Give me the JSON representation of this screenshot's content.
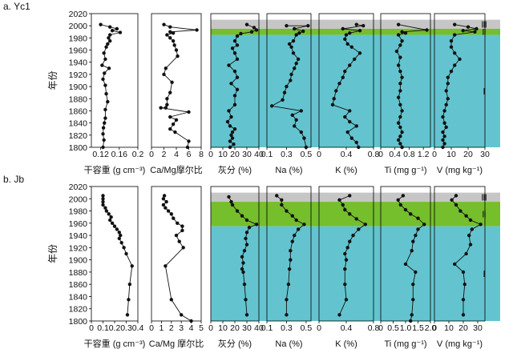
{
  "chart_data": [
    {
      "type": "line",
      "panel_label": "a. Yc1",
      "ylabel": "年份",
      "ylim": [
        1800,
        2020
      ],
      "y_ticks": [
        1800,
        1820,
        1840,
        1860,
        1880,
        1900,
        1920,
        1940,
        1960,
        1980,
        2000,
        2020
      ],
      "zones": [
        {
          "name": "Ⅲ",
          "from": 1995,
          "to": 2010,
          "color": "#c6c6c6"
        },
        {
          "name": "Ⅱ",
          "from": 1985,
          "to": 1995,
          "color": "#75be2c"
        },
        {
          "name": "Ⅰ",
          "from": 1800,
          "to": 1985,
          "color": "#63c4cf"
        }
      ],
      "series": [
        {
          "xlabel": "干容重 (g cm⁻³)",
          "xlim": [
            0.1,
            0.2
          ],
          "x_ticks": [
            "0.12",
            "0.16",
            "0.2"
          ],
          "x_tick_values": [
            0.12,
            0.16,
            0.2
          ],
          "x": [
            0.12,
            0.14,
            0.155,
            0.145,
            0.162,
            0.14,
            0.137,
            0.14,
            0.135,
            0.132,
            0.127,
            0.13,
            0.123,
            0.138,
            0.128,
            0.125,
            0.13,
            0.132,
            0.135,
            0.13,
            0.13,
            0.128,
            0.126,
            0.125,
            0.127,
            0.125
          ],
          "y": [
            2002,
            1998,
            1995,
            1992,
            1989,
            1985,
            1980,
            1975,
            1970,
            1965,
            1955,
            1945,
            1935,
            1930,
            1922,
            1912,
            1902,
            1888,
            1875,
            1862,
            1848,
            1840,
            1832,
            1822,
            1812,
            1800
          ]
        },
        {
          "xlabel": "Ca/Mg摩尔比",
          "xlim": [
            0,
            8
          ],
          "x_ticks": [
            "0",
            "2",
            "4",
            "6",
            "8"
          ],
          "x_tick_values": [
            0,
            2,
            4,
            6,
            8
          ],
          "x": [
            2.0,
            3.0,
            7.3,
            3.0,
            3.5,
            2.5,
            3.0,
            3.5,
            3.7,
            4.0,
            4.2,
            2.3,
            2.0,
            3.3,
            3.0,
            2.5,
            2.5,
            2.3,
            1.5,
            6.0,
            3.0,
            4.0,
            3.5,
            3.0,
            3.8,
            6.0,
            5.8
          ],
          "y": [
            2002,
            1998,
            1993,
            1990,
            1988,
            1985,
            1980,
            1975,
            1968,
            1960,
            1950,
            1930,
            1920,
            1907,
            1890,
            1880,
            1870,
            1865,
            1865,
            1858,
            1850,
            1845,
            1838,
            1830,
            1825,
            1810,
            1800
          ]
        },
        {
          "xlabel": "灰分 (%)",
          "xlim": [
            0,
            40
          ],
          "x_ticks": [
            "0",
            "10",
            "20",
            "30",
            "40"
          ],
          "x_tick_values": [
            0,
            10,
            20,
            30,
            40
          ],
          "x": [
            30,
            36,
            38,
            34,
            25,
            22,
            20,
            22,
            18,
            20,
            22,
            15,
            20,
            22,
            17,
            22,
            20,
            20,
            15,
            17,
            14,
            16,
            20,
            18,
            17,
            18,
            16,
            19,
            16
          ],
          "y": [
            2002,
            1997,
            1993,
            1990,
            1987,
            1983,
            1975,
            1968,
            1963,
            1955,
            1945,
            1935,
            1925,
            1915,
            1905,
            1895,
            1885,
            1870,
            1860,
            1850,
            1842,
            1835,
            1830,
            1825,
            1820,
            1815,
            1810,
            1805,
            1800
          ]
        },
        {
          "xlabel": "Na (%)",
          "xlim": [
            0.1,
            0.55
          ],
          "x_ticks": [
            "0.1",
            "0.3",
            "0.5"
          ],
          "x_tick_values": [
            0.1,
            0.3,
            0.5
          ],
          "x": [
            0.3,
            0.52,
            0.38,
            0.47,
            0.43,
            0.4,
            0.37,
            0.33,
            0.35,
            0.37,
            0.42,
            0.4,
            0.38,
            0.35,
            0.34,
            0.3,
            0.28,
            0.26,
            0.15,
            0.45,
            0.36,
            0.4,
            0.38,
            0.45,
            0.48,
            0.5
          ],
          "y": [
            2000,
            2000,
            1995,
            1991,
            1988,
            1985,
            1975,
            1970,
            1965,
            1955,
            1945,
            1938,
            1930,
            1920,
            1910,
            1900,
            1890,
            1878,
            1868,
            1860,
            1853,
            1845,
            1835,
            1825,
            1815,
            1800
          ]
        },
        {
          "xlabel": "K (%)",
          "xlim": [
            0,
            0.8
          ],
          "x_ticks": [
            "0",
            "0.4",
            "0.8"
          ],
          "x_tick_values": [
            0,
            0.4,
            0.8
          ],
          "x": [
            0.55,
            0.65,
            0.35,
            0.6,
            0.45,
            0.4,
            0.38,
            0.42,
            0.48,
            0.6,
            0.52,
            0.45,
            0.38,
            0.35,
            0.3,
            0.25,
            0.22,
            0.2,
            0.45,
            0.38,
            0.45,
            0.55,
            0.42,
            0.48,
            0.55,
            0.58
          ],
          "y": [
            2002,
            2000,
            1995,
            1992,
            1988,
            1985,
            1978,
            1970,
            1965,
            1955,
            1945,
            1935,
            1925,
            1915,
            1905,
            1893,
            1880,
            1870,
            1860,
            1850,
            1842,
            1835,
            1825,
            1815,
            1808,
            1800
          ]
        },
        {
          "xlabel": "Ti (mg g⁻¹)",
          "xlim": [
            0,
            1.4
          ],
          "x_ticks": [
            "0",
            "0.4",
            "0.8",
            "1.2"
          ],
          "x_tick_values": [
            0,
            0.4,
            0.8,
            1.2
          ],
          "x": [
            0.5,
            1.3,
            0.6,
            0.7,
            0.5,
            0.6,
            0.55,
            0.45,
            0.55,
            0.5,
            0.55,
            0.6,
            0.55,
            0.55,
            0.5,
            0.55,
            0.6,
            0.55,
            0.5,
            0.55,
            0.6,
            0.55,
            0.5,
            0.55,
            0.6,
            0.6
          ],
          "y": [
            2002,
            1993,
            1990,
            1988,
            1985,
            1975,
            1968,
            1958,
            1948,
            1935,
            1925,
            1915,
            1905,
            1893,
            1882,
            1870,
            1860,
            1850,
            1840,
            1833,
            1825,
            1818,
            1812,
            1806,
            1800,
            1800
          ]
        },
        {
          "xlabel": "V (mg kg⁻¹)",
          "xlim": [
            0,
            30
          ],
          "x_ticks": [
            "0",
            "10",
            "20",
            "30"
          ],
          "x_tick_values": [
            0,
            10,
            20,
            30
          ],
          "x": [
            12,
            20,
            25,
            17,
            24,
            12,
            10,
            10,
            12,
            15,
            12,
            10,
            8,
            8,
            7,
            8,
            7,
            6,
            5,
            6,
            7,
            5,
            6,
            5,
            6,
            5
          ],
          "y": [
            2002,
            1998,
            1995,
            1992,
            1990,
            1985,
            1975,
            1965,
            1955,
            1945,
            1935,
            1925,
            1915,
            1905,
            1893,
            1880,
            1870,
            1860,
            1850,
            1840,
            1833,
            1825,
            1818,
            1812,
            1806,
            1800
          ]
        }
      ]
    },
    {
      "type": "line",
      "panel_label": "b. Jb",
      "ylabel": "年份",
      "ylim": [
        1800,
        2020
      ],
      "y_ticks": [
        1800,
        1820,
        1840,
        1860,
        1880,
        1900,
        1920,
        1940,
        1960,
        1980,
        2000,
        2020
      ],
      "zones": [
        {
          "name": "Ⅲ",
          "from": 1995,
          "to": 2010,
          "color": "#c6c6c6"
        },
        {
          "name": "Ⅱ",
          "from": 1955,
          "to": 1995,
          "color": "#75be2c"
        },
        {
          "name": "Ⅰ",
          "from": 1800,
          "to": 1955,
          "color": "#63c4cf"
        }
      ],
      "series": [
        {
          "xlabel": "干容重 (g cm⁻³)",
          "xlim": [
            0,
            0.4
          ],
          "x_ticks": [
            "0",
            "0.1",
            "0.2",
            "0.3",
            "0.4"
          ],
          "x_tick_values": [
            0,
            0.1,
            0.2,
            0.3,
            0.4
          ],
          "x": [
            0.1,
            0.1,
            0.1,
            0.1,
            0.12,
            0.13,
            0.15,
            0.17,
            0.16,
            0.18,
            0.2,
            0.22,
            0.24,
            0.25,
            0.24,
            0.26,
            0.28,
            0.3,
            0.35,
            0.33,
            0.32,
            0.31
          ],
          "y": [
            2005,
            2000,
            1995,
            1990,
            1985,
            1980,
            1975,
            1970,
            1965,
            1960,
            1955,
            1950,
            1945,
            1940,
            1935,
            1928,
            1920,
            1910,
            1890,
            1860,
            1835,
            1810
          ]
        },
        {
          "xlabel": "Ca/Mg 摩尔比",
          "xlim": [
            0,
            5
          ],
          "x_ticks": [
            "0",
            "1",
            "2",
            "3",
            "4",
            "5"
          ],
          "x_tick_values": [
            0,
            1,
            2,
            3,
            4,
            5
          ],
          "x": [
            1.3,
            1.2,
            1.5,
            1.2,
            1.4,
            1.7,
            2.0,
            2.2,
            2.6,
            3.1,
            3.1,
            2.5,
            2.8,
            3.2,
            1.4,
            2.0,
            3.0,
            4.0
          ],
          "y": [
            2005,
            2000,
            1995,
            1990,
            1985,
            1980,
            1975,
            1968,
            1960,
            1955,
            1948,
            1940,
            1930,
            1920,
            1890,
            1835,
            1810,
            1800
          ]
        },
        {
          "xlabel": "灰分 (%)",
          "xlim": [
            0,
            40
          ],
          "x_ticks": [
            "0",
            "10",
            "20",
            "30",
            "40"
          ],
          "x_tick_values": [
            0,
            10,
            20,
            30,
            40
          ],
          "x": [
            15,
            17,
            18,
            22,
            26,
            30,
            38,
            32,
            30,
            29,
            30,
            28,
            26,
            27,
            26,
            27,
            28,
            29,
            30
          ],
          "y": [
            2003,
            1995,
            1990,
            1980,
            1972,
            1965,
            1958,
            1953,
            1945,
            1935,
            1925,
            1915,
            1905,
            1895,
            1885,
            1880,
            1860,
            1835,
            1810
          ]
        },
        {
          "xlabel": "Na (%)",
          "xlim": [
            0.1,
            0.55
          ],
          "x_ticks": [
            "0.1",
            "0.3",
            "0.5"
          ],
          "x_tick_values": [
            0.1,
            0.3,
            0.5
          ],
          "x": [
            0.2,
            0.25,
            0.25,
            0.3,
            0.36,
            0.4,
            0.48,
            0.42,
            0.38,
            0.36,
            0.34,
            0.34,
            0.33,
            0.32,
            0.3,
            0.3
          ],
          "y": [
            2005,
            1998,
            1990,
            1980,
            1972,
            1965,
            1958,
            1950,
            1940,
            1930,
            1915,
            1900,
            1885,
            1860,
            1835,
            1810
          ]
        },
        {
          "xlabel": "K (%)",
          "xlim": [
            0,
            0.8
          ],
          "x_ticks": [
            "0",
            "0.4",
            "0.8"
          ],
          "x_tick_values": [
            0,
            0.4,
            0.8
          ],
          "x": [
            0.45,
            0.3,
            0.35,
            0.38,
            0.45,
            0.55,
            0.68,
            0.58,
            0.5,
            0.45,
            0.42,
            0.38,
            0.4,
            0.38,
            0.38,
            0.4,
            0.3
          ],
          "y": [
            2005,
            1998,
            1990,
            1982,
            1975,
            1967,
            1958,
            1950,
            1940,
            1930,
            1920,
            1910,
            1900,
            1885,
            1860,
            1835,
            1810
          ]
        },
        {
          "xlabel": "Ti (mg g⁻¹)",
          "xlim": [
            0,
            2.0
          ],
          "x_ticks": [
            "0",
            "0.5",
            "1.0",
            "1.5",
            "2.0"
          ],
          "x_tick_values": [
            0,
            0.5,
            1.0,
            1.5,
            2.0
          ],
          "x": [
            0.9,
            0.7,
            0.8,
            1.0,
            1.2,
            1.5,
            1.75,
            1.5,
            1.4,
            1.3,
            1.25,
            1.0,
            1.4,
            1.3,
            1.3,
            1.25,
            1.2
          ],
          "y": [
            2005,
            1998,
            1990,
            1982,
            1975,
            1968,
            1958,
            1950,
            1940,
            1930,
            1915,
            1893,
            1880,
            1860,
            1835,
            1810,
            1800
          ]
        },
        {
          "xlabel": "V (mg kg⁻¹)",
          "xlim": [
            0,
            35
          ],
          "x_ticks": [
            "0",
            "10",
            "20",
            "30"
          ],
          "x_tick_values": [
            0,
            10,
            20,
            30
          ],
          "x": [
            15,
            12,
            15,
            18,
            22,
            25,
            32,
            26,
            24,
            25,
            22,
            14,
            20,
            21,
            20,
            20
          ],
          "y": [
            2005,
            1998,
            1990,
            1980,
            1972,
            1965,
            1958,
            1950,
            1940,
            1925,
            1910,
            1893,
            1880,
            1860,
            1835,
            1810
          ]
        }
      ]
    }
  ]
}
